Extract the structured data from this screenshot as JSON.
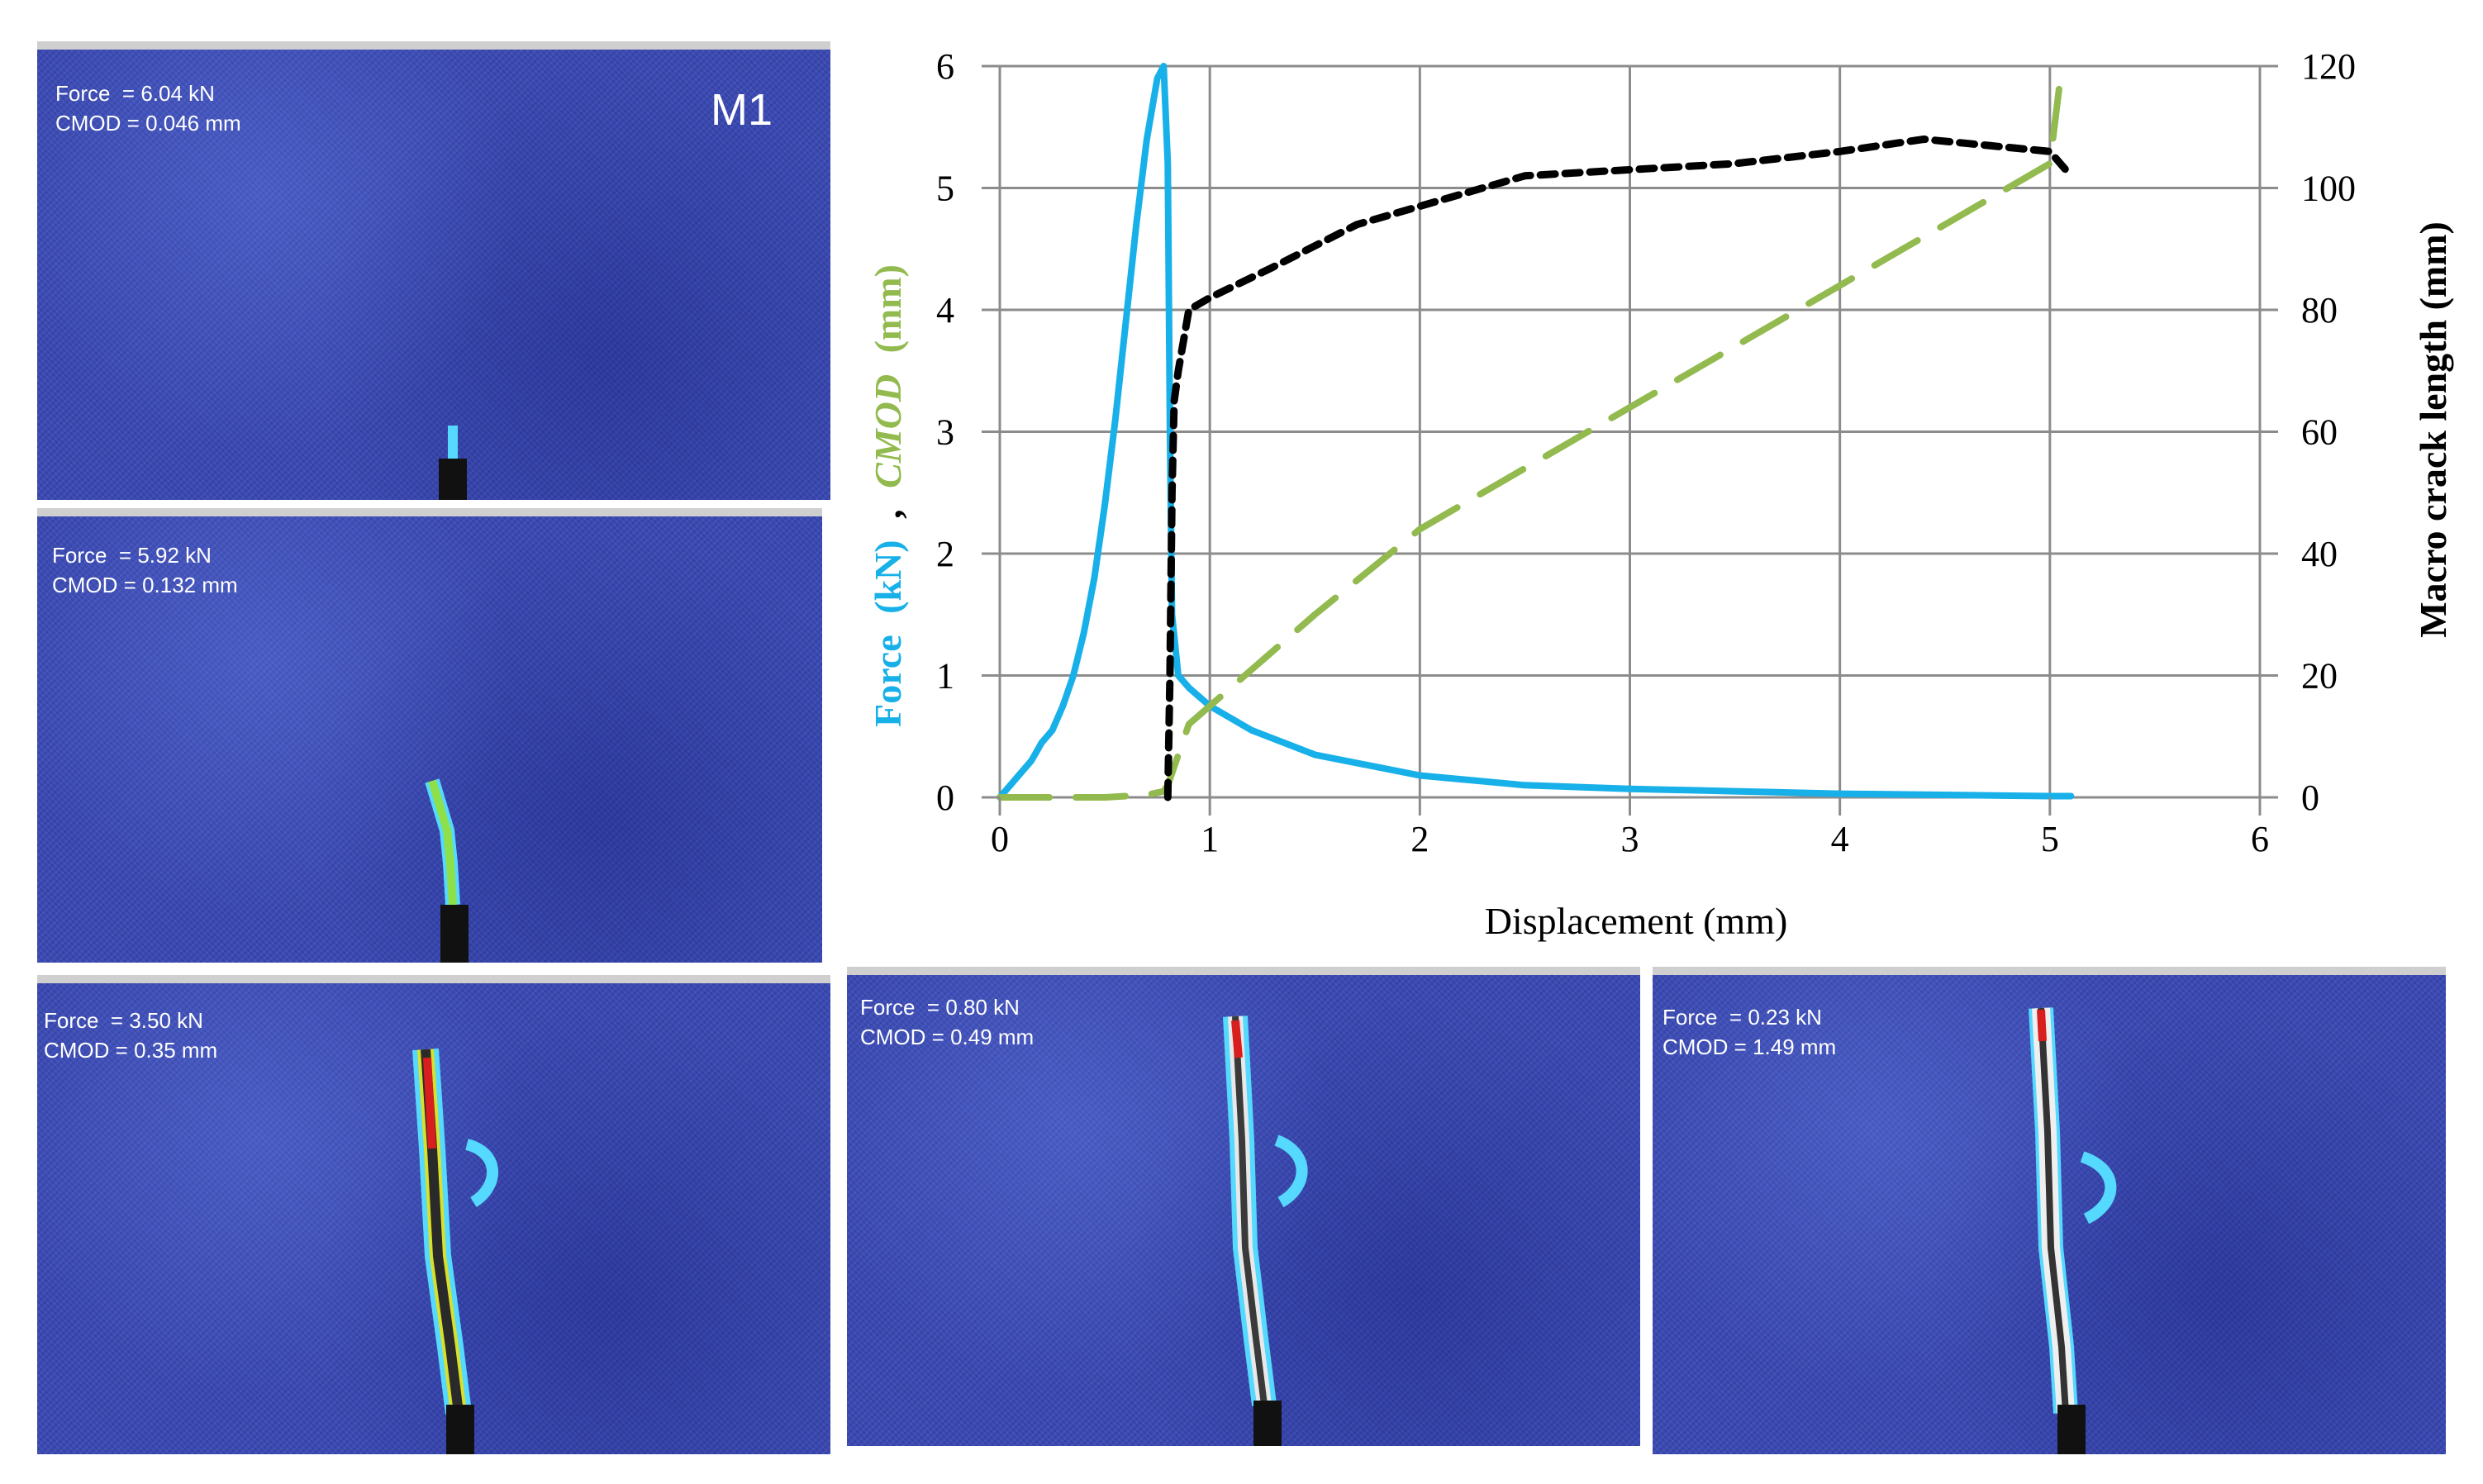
{
  "panels": [
    {
      "force": "Force  = 6.04 kN",
      "cmod": "CMOD = 0.046 mm",
      "tag": "M1"
    },
    {
      "force": "Force  = 5.92 kN",
      "cmod": "CMOD = 0.132 mm"
    },
    {
      "force": "Force  = 3.50 kN",
      "cmod": "CMOD = 0.35 mm"
    },
    {
      "force": "Force  = 0.80 kN",
      "cmod": "CMOD = 0.49 mm"
    },
    {
      "force": "Force  = 0.23 kN",
      "cmod": "CMOD = 1.49 mm"
    }
  ],
  "colors": {
    "force": "#18b0e8",
    "cmod": "#92ba4e",
    "crack": "#000000",
    "grid": "#8c8c8c",
    "panel_bg": "#3b4ab5"
  },
  "chart_data": {
    "type": "line",
    "xlabel": "Displacement (mm)",
    "ylabel_left": {
      "force": "Force",
      "force_unit": "(kN)",
      "sep": ",",
      "cmod": "CMOD",
      "cmod_unit": "(mm)"
    },
    "ylabel_right": "Macro crack length  (mm)",
    "xlim": [
      0,
      6
    ],
    "ylim_left": [
      0,
      6
    ],
    "ylim_right": [
      0,
      120
    ],
    "x_ticks": [
      "0",
      "1",
      "2",
      "3",
      "4",
      "5",
      "6"
    ],
    "y_left_ticks": [
      "0",
      "1",
      "2",
      "3",
      "4",
      "5",
      "6"
    ],
    "y_right_ticks": [
      "0",
      "20",
      "40",
      "60",
      "80",
      "100",
      "120"
    ],
    "grid": true,
    "series": [
      {
        "name": "Force",
        "axis": "left",
        "style": "solid",
        "x": [
          0,
          0.05,
          0.1,
          0.15,
          0.2,
          0.25,
          0.3,
          0.35,
          0.4,
          0.45,
          0.5,
          0.55,
          0.6,
          0.65,
          0.7,
          0.75,
          0.78,
          0.8,
          0.81,
          0.82,
          0.85,
          0.9,
          1.0,
          1.2,
          1.5,
          2.0,
          2.5,
          3.0,
          3.5,
          4.0,
          4.5,
          5.0,
          5.1
        ],
        "y": [
          0,
          0.1,
          0.2,
          0.3,
          0.45,
          0.55,
          0.75,
          1.0,
          1.35,
          1.8,
          2.4,
          3.1,
          3.9,
          4.7,
          5.4,
          5.9,
          6.0,
          5.2,
          3.0,
          1.5,
          1.0,
          0.9,
          0.75,
          0.55,
          0.35,
          0.18,
          0.1,
          0.07,
          0.05,
          0.03,
          0.02,
          0.01,
          0.01
        ]
      },
      {
        "name": "CMOD",
        "axis": "left",
        "style": "dashed",
        "x": [
          0,
          0.5,
          0.7,
          0.78,
          0.8,
          0.9,
          1.0,
          1.5,
          2.0,
          3.0,
          4.0,
          4.5,
          5.0,
          5.05
        ],
        "y": [
          0,
          0,
          0.02,
          0.05,
          0.1,
          0.6,
          0.75,
          1.5,
          2.2,
          3.2,
          4.2,
          4.7,
          5.2,
          5.9
        ]
      },
      {
        "name": "Macro crack length",
        "axis": "right",
        "style": "dashed",
        "x": [
          0.8,
          0.81,
          0.82,
          0.83,
          0.85,
          0.9,
          1.0,
          1.3,
          1.7,
          2.0,
          2.5,
          3.0,
          3.5,
          4.0,
          4.4,
          4.7,
          5.0,
          5.1
        ],
        "y": [
          0,
          20,
          50,
          65,
          70,
          80,
          82,
          87,
          94,
          97,
          102,
          103,
          104,
          106,
          108,
          107,
          106,
          102
        ]
      }
    ]
  }
}
